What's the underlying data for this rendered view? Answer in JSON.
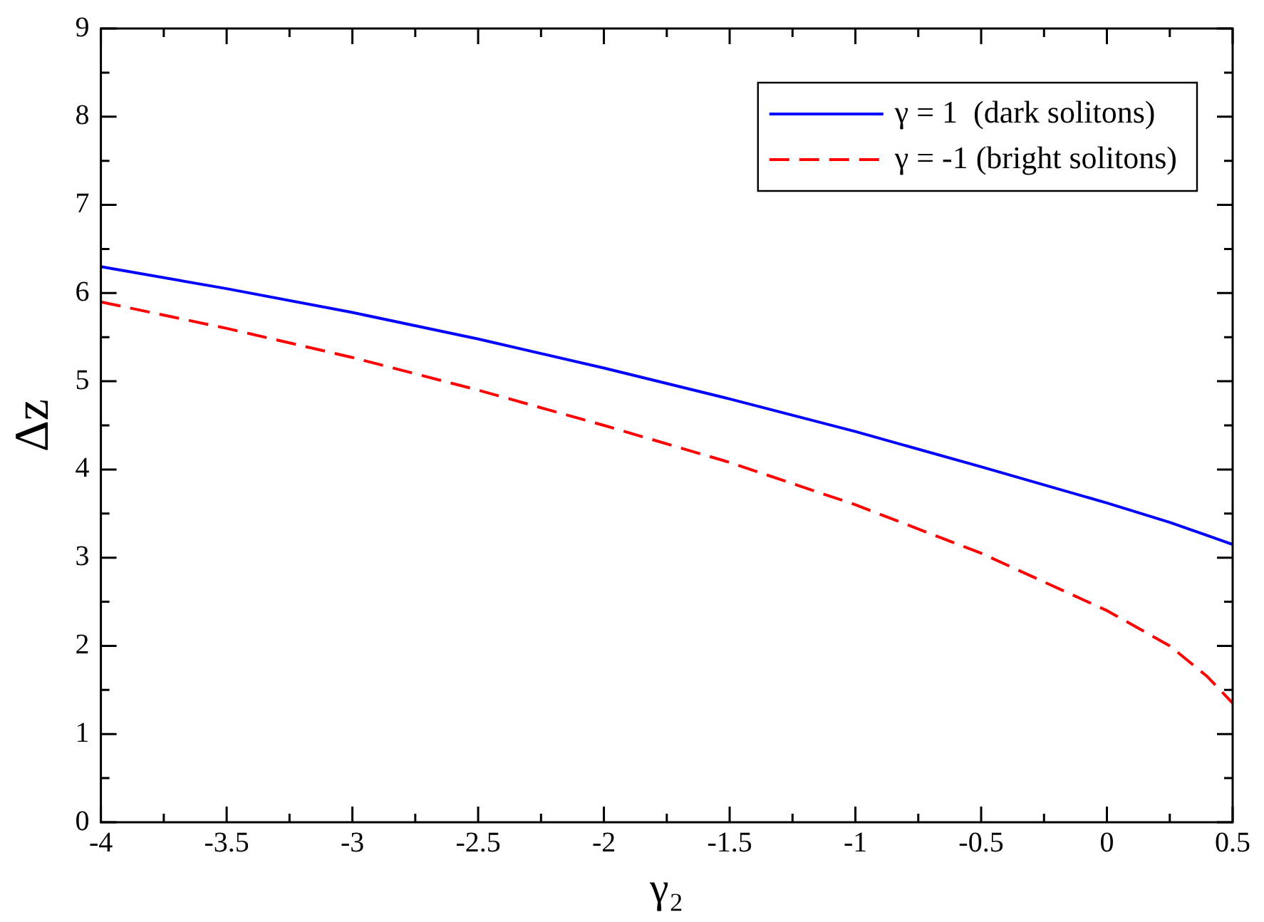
{
  "chart_data": {
    "type": "line",
    "xlabel": "γ₂",
    "ylabel": "Δz",
    "x": [
      -4,
      -3.5,
      -3,
      -2.5,
      -2,
      -1.5,
      -1,
      -0.5,
      0,
      0.25,
      0.4,
      0.5
    ],
    "series": [
      {
        "name": "γ = 1  (dark solitons)",
        "color": "#0000ff",
        "line_style": "solid",
        "values": [
          6.3,
          6.05,
          5.78,
          5.48,
          5.15,
          4.8,
          4.43,
          4.03,
          3.62,
          3.4,
          3.25,
          3.15
        ]
      },
      {
        "name": "γ = -1 (bright solitons)",
        "color": "#ff0000",
        "line_style": "dashed",
        "values": [
          5.9,
          5.6,
          5.27,
          4.9,
          4.5,
          4.08,
          3.6,
          3.05,
          2.4,
          2.0,
          1.65,
          1.35
        ]
      }
    ],
    "xlim": [
      -4,
      0.5
    ],
    "xticks": [
      -4,
      {
        "value": -3.75,
        "label": null
      },
      -3.5,
      {
        "value": -3.25,
        "label": null
      },
      -3,
      {
        "value": -2.75,
        "label": null
      },
      -2.5,
      {
        "value": -2.25,
        "label": null
      },
      -2,
      {
        "value": -1.75,
        "label": null
      },
      -1.5,
      {
        "value": -1.25,
        "label": null
      },
      -1,
      {
        "value": -0.75,
        "label": null
      },
      -0.5,
      {
        "value": -0.25,
        "label": null
      },
      0,
      {
        "value": 0.25,
        "label": null
      },
      0.5
    ],
    "ylim": [
      0,
      9
    ],
    "yticks": [
      0,
      {
        "value": 0.5,
        "label": null
      },
      1,
      {
        "value": 1.5,
        "label": null
      },
      2,
      {
        "value": 2.5,
        "label": null
      },
      3,
      {
        "value": 3.5,
        "label": null
      },
      4,
      {
        "value": 4.5,
        "label": null
      },
      5,
      {
        "value": 5.5,
        "label": null
      },
      6,
      {
        "value": 6.5,
        "label": null
      },
      7,
      {
        "value": 7.5,
        "label": null
      },
      8,
      {
        "value": 8.5,
        "label": null
      },
      9
    ],
    "grid": false,
    "legend": "top right",
    "marker": "none"
  }
}
